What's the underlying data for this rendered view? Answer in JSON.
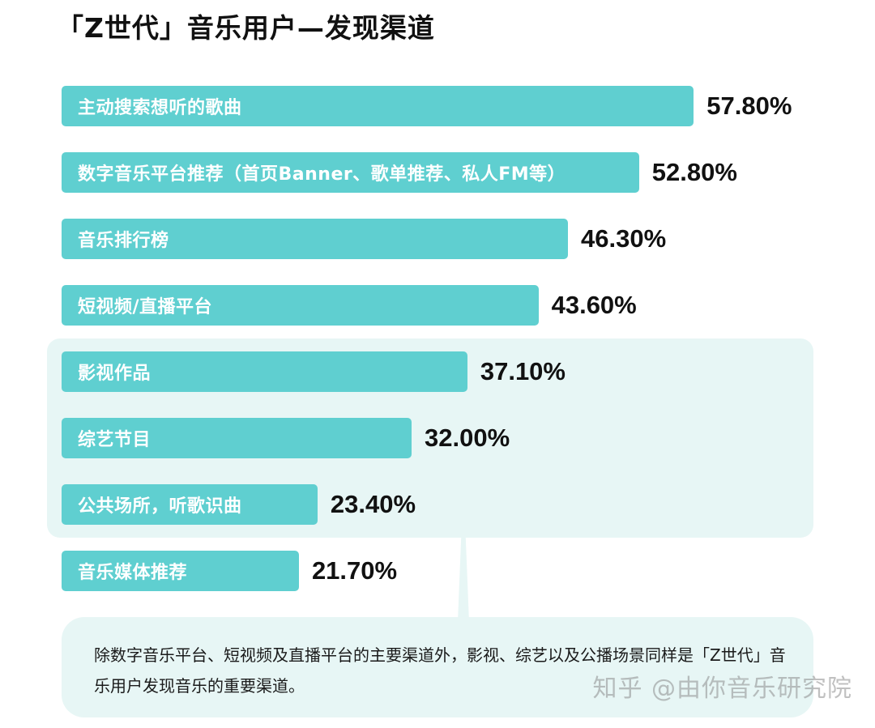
{
  "title": "「Z世代」音乐用户—发现渠道",
  "colors": {
    "bar": "#5fcfd0",
    "panel": "#e7f6f5",
    "text": "#111111"
  },
  "chart_data": {
    "type": "bar",
    "orientation": "horizontal",
    "title": "「Z世代」音乐用户—发现渠道",
    "categories": [
      "主动搜索想听的歌曲",
      "数字音乐平台推荐（首页Banner、歌单推荐、私人FM等）",
      "音乐排行榜",
      "短视频/直播平台",
      "影视作品",
      "综艺节目",
      "公共场所，听歌识曲",
      "音乐媒体推荐"
    ],
    "values": [
      57.8,
      52.8,
      46.3,
      43.6,
      37.1,
      32.0,
      23.4,
      21.7
    ],
    "value_labels": [
      "57.80%",
      "52.80%",
      "46.30%",
      "43.60%",
      "37.10%",
      "32.00%",
      "23.40%",
      "21.70%"
    ],
    "unit": "%",
    "highlighted_categories": [
      "影视作品",
      "综艺节目",
      "公共场所，听歌识曲"
    ],
    "legend": "none",
    "grid": false
  },
  "note": {
    "text": "除数字音乐平台、短视频及直播平台的主要渠道外，影视、综艺以及公播场景同样是「Z世代」音乐用户发现音乐的重要渠道。"
  },
  "watermark": "知乎 @由你音乐研究院"
}
